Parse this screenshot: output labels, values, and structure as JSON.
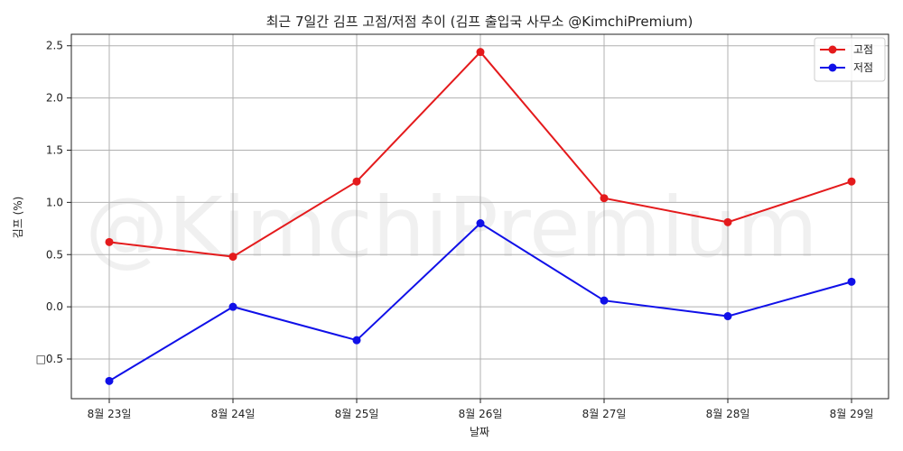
{
  "chart_data": {
    "type": "line",
    "title": "최근 7일간 김프 고점/저점 추이 (김프 출입국 사무소 @KimchiPremium)",
    "xlabel": "날짜",
    "ylabel": "김프 (%)",
    "categories": [
      "8월 23일",
      "8월 24일",
      "8월 25일",
      "8월 26일",
      "8월 27일",
      "8월 28일",
      "8월 29일"
    ],
    "series": [
      {
        "name": "고점",
        "color": "#e41a1c",
        "values": [
          0.62,
          0.48,
          1.2,
          2.44,
          1.04,
          0.81,
          1.2
        ]
      },
      {
        "name": "저점",
        "color": "#1010e8",
        "values": [
          -0.71,
          0.0,
          -0.32,
          0.8,
          0.06,
          -0.09,
          0.24
        ]
      }
    ],
    "yticks": [
      -0.5,
      0.0,
      0.5,
      1.0,
      1.5,
      2.0,
      2.5
    ],
    "ytick_labels": [
      "□0.5",
      "0.0",
      "0.5",
      "1.0",
      "1.5",
      "2.0",
      "2.5"
    ],
    "ylim": [
      -0.88,
      2.61
    ],
    "grid": true,
    "legend_position": "top-right",
    "watermark": "@KimchiPremium"
  }
}
